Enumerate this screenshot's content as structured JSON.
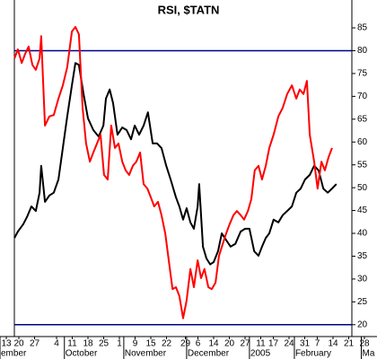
{
  "chart_data": {
    "type": "line",
    "title": "RSI, $TATN",
    "xlim": [
      0,
      112
    ],
    "ylim": [
      17.4,
      91.1
    ],
    "yticks": [
      20,
      25,
      30,
      35,
      40,
      45,
      50,
      55,
      60,
      65,
      70,
      75,
      80,
      85
    ],
    "xticks": [
      {
        "value": 2,
        "label": "13"
      },
      {
        "value": 6,
        "label": "20"
      },
      {
        "value": 11,
        "label": "27"
      },
      {
        "value": 18,
        "label": "4"
      },
      {
        "value": 23,
        "label": "11"
      },
      {
        "value": 28,
        "label": "18"
      },
      {
        "value": 33,
        "label": "25"
      },
      {
        "value": 38,
        "label": "1"
      },
      {
        "value": 43,
        "label": "9"
      },
      {
        "value": 48,
        "label": "15"
      },
      {
        "value": 53,
        "label": "22"
      },
      {
        "value": 59,
        "label": "29"
      },
      {
        "value": 63,
        "label": "6"
      },
      {
        "value": 68,
        "label": "14"
      },
      {
        "value": 73,
        "label": "20"
      },
      {
        "value": 78,
        "label": "27"
      },
      {
        "value": 83,
        "label": "11"
      },
      {
        "value": 87,
        "label": "17"
      },
      {
        "value": 92,
        "label": "24"
      },
      {
        "value": 97,
        "label": "31"
      },
      {
        "value": 101,
        "label": "7"
      },
      {
        "value": 106,
        "label": "14"
      },
      {
        "value": 111,
        "label": "21"
      },
      {
        "value": 116,
        "label": "28"
      }
    ],
    "month_labels": [
      {
        "value": 0,
        "label": "ember"
      },
      {
        "value": 20.5,
        "label": "October"
      },
      {
        "value": 39.4,
        "label": "November"
      },
      {
        "value": 59.4,
        "label": "December"
      },
      {
        "value": 79.4,
        "label": "2005"
      },
      {
        "value": 93.7,
        "label": "February"
      },
      {
        "value": 115,
        "label": "Ma"
      }
    ],
    "hlines": [
      80,
      20
    ],
    "hline_color": "#00008b",
    "series": [
      {
        "color": "#000000",
        "x": [
          4.6,
          5.7,
          7.4,
          8.6,
          10,
          11.4,
          12.6,
          13.1,
          14.3,
          15.7,
          17.1,
          18.6,
          20,
          21.4,
          22.9,
          24,
          25.1,
          26.6,
          28,
          29.7,
          31.4,
          32.9,
          33.7,
          34.9,
          36,
          37.4,
          38.9,
          40.3,
          41.7,
          42.9,
          44.3,
          45.7,
          47.1,
          48.6,
          50,
          51.4,
          52.9,
          54.3,
          56,
          57.1,
          58.3,
          59.4,
          60.6,
          61.7,
          62.9,
          63.4,
          64.6,
          65.7,
          66.9,
          68,
          69.4,
          70.6,
          72,
          73.4,
          74.9,
          76.6,
          78,
          79.4,
          80.9,
          82.3,
          83.4,
          84.6,
          85.7,
          87.1,
          88.6,
          90,
          91.4,
          92.9,
          94.3,
          95.7,
          97.1,
          98.6,
          100,
          101.4,
          102.9,
          104.3,
          105.7,
          107.1
        ],
        "values": [
          39.0,
          40.4,
          42.0,
          43.6,
          45.9,
          44.9,
          48.9,
          54.8,
          46.9,
          48.3,
          48.9,
          51.8,
          58.7,
          65.6,
          72.4,
          77.3,
          76.9,
          70.5,
          65.2,
          62.6,
          61.2,
          63.6,
          69.5,
          71.5,
          68.5,
          61.6,
          63.2,
          62.6,
          60.6,
          63.6,
          61.6,
          63.6,
          66.5,
          59.7,
          59.7,
          58.7,
          54.8,
          51.8,
          47.9,
          45.9,
          43.0,
          45.5,
          42.4,
          41.0,
          45.9,
          50.8,
          37.1,
          34.5,
          33.2,
          33.7,
          36.1,
          40.0,
          38.5,
          37.1,
          37.7,
          40.4,
          41.0,
          41.0,
          36.1,
          35.1,
          37.1,
          39.0,
          40.0,
          43.0,
          42.4,
          44.0,
          44.9,
          45.9,
          48.9,
          49.8,
          51.8,
          52.8,
          54.8,
          53.8,
          49.8,
          48.9,
          49.8,
          50.8
        ]
      },
      {
        "color": "#ff0000",
        "x": [
          4.6,
          5.7,
          6.9,
          8,
          9.1,
          10.3,
          11.4,
          12.6,
          13.1,
          14.3,
          15.7,
          17.1,
          18.6,
          20,
          21.4,
          22.9,
          24,
          25.1,
          26.3,
          27.4,
          28.6,
          29.7,
          30.9,
          32,
          33.1,
          34.3,
          35.4,
          36.6,
          37.7,
          38.9,
          40,
          41.1,
          42.3,
          43.4,
          44.6,
          45.7,
          46.9,
          48,
          49.1,
          50.3,
          51.4,
          52.6,
          53.7,
          54.9,
          56,
          57.1,
          58.3,
          59.4,
          60.6,
          61.7,
          62.9,
          64,
          65.1,
          66.3,
          67.4,
          68.6,
          69.7,
          70.9,
          72,
          73.1,
          74.3,
          75.4,
          76.6,
          77.7,
          78.9,
          80,
          81.1,
          82.3,
          83.4,
          84.6,
          85.7,
          87.1,
          88.6,
          90,
          91.4,
          92.9,
          94.3,
          95.4,
          96.6,
          97.7,
          98.6,
          100,
          101.1,
          102.3,
          103.4,
          104.6,
          105.7
        ],
        "values": [
          78.3,
          80.3,
          77.3,
          79.3,
          80.9,
          76.9,
          75.8,
          78.3,
          83.2,
          63.6,
          65.6,
          65.9,
          69.5,
          72.4,
          76.4,
          84.2,
          85.2,
          83.6,
          67.5,
          59.7,
          55.7,
          57.7,
          59.7,
          61.6,
          52.8,
          51.8,
          63.6,
          58.7,
          59.7,
          55.7,
          53.8,
          52.8,
          54.8,
          55.7,
          57.7,
          50.8,
          49.8,
          47.9,
          45.9,
          46.9,
          44.0,
          40.0,
          34.1,
          27.8,
          28.2,
          26.3,
          21.4,
          25.3,
          32.2,
          28.2,
          34.1,
          30.2,
          32.2,
          28.2,
          27.8,
          29.2,
          35.1,
          37.7,
          40.0,
          42.0,
          44.0,
          44.9,
          44.0,
          43.0,
          44.9,
          47.5,
          53.8,
          54.8,
          51.8,
          54.8,
          58.7,
          61.6,
          65.6,
          67.5,
          70.5,
          72.4,
          69.5,
          71.5,
          70.5,
          73.4,
          61.6,
          55.7,
          49.8,
          55.7,
          53.8,
          56.7,
          58.7
        ]
      }
    ]
  }
}
